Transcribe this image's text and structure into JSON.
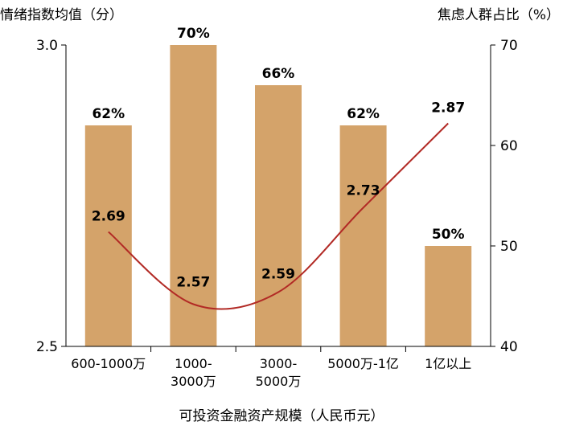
{
  "chart_data": {
    "type": "bar",
    "y_left_label": "情绪指数均值（分）",
    "y_right_label": "焦虑人群占比（%）",
    "xlabel": "可投资金融资产规模（人民币元）",
    "categories": [
      [
        "600-1000万"
      ],
      [
        "1000-",
        "3000万"
      ],
      [
        "3000-",
        "5000万"
      ],
      [
        "5000万-1亿"
      ],
      [
        "1亿以上"
      ]
    ],
    "series": [
      {
        "name": "焦虑人群占比（%）",
        "type": "bar",
        "axis": "right",
        "values": [
          62,
          70,
          66,
          62,
          50
        ],
        "labels": [
          "62%",
          "70%",
          "66%",
          "62%",
          "50%"
        ],
        "color": "#d4a36a"
      },
      {
        "name": "情绪指数均值（分）",
        "type": "line",
        "axis": "left",
        "values": [
          2.69,
          2.57,
          2.59,
          2.73,
          2.87
        ],
        "labels": [
          "2.69",
          "2.57",
          "2.59",
          "2.73",
          "2.87"
        ],
        "color": "#b22a25"
      }
    ],
    "y_left_lim": [
      2.5,
      3.0
    ],
    "y_left_ticks": [
      "2.5",
      "3.0"
    ],
    "y_right_lim": [
      40,
      70
    ],
    "y_right_ticks": [
      "40",
      "50",
      "60",
      "70"
    ],
    "grid": false,
    "legend": "none"
  }
}
